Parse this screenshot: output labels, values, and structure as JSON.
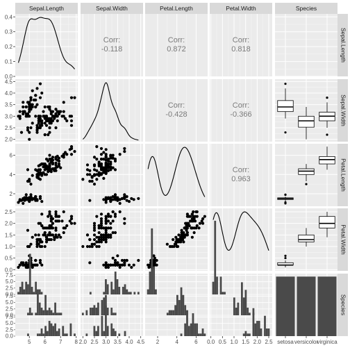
{
  "chart_data": {
    "type": "scatterplot-matrix",
    "columns": [
      "Sepal.Length",
      "Sepal.Width",
      "Petal.Length",
      "Petal.Width",
      "Species"
    ],
    "species_levels": [
      "setosa",
      "versicolor",
      "virginica"
    ],
    "species_tick_labels": [
      "setosa",
      "versicolor",
      "virginica"
    ],
    "correlation_label": "Corr:",
    "correlations": [
      {
        "row": 0,
        "col": 1,
        "value": "-0.118"
      },
      {
        "row": 0,
        "col": 2,
        "value": "0.872"
      },
      {
        "row": 0,
        "col": 3,
        "value": "0.818"
      },
      {
        "row": 1,
        "col": 2,
        "value": "-0.428"
      },
      {
        "row": 1,
        "col": 3,
        "value": "-0.366"
      },
      {
        "row": 2,
        "col": 3,
        "value": "0.963"
      }
    ],
    "x_axes": {
      "Sepal.Length": {
        "range": [
          4.1,
          8.1
        ],
        "ticks": [
          5,
          6,
          7,
          8
        ]
      },
      "Sepal.Width": {
        "range": [
          1.9,
          4.6
        ],
        "ticks": [
          2.0,
          2.5,
          3.0,
          3.5,
          4.0,
          4.5
        ],
        "tick_labels": [
          "2.0",
          "2.5",
          "3.0",
          "3.5",
          "4.0",
          "4.5"
        ]
      },
      "Petal.Length": {
        "range": [
          0.7,
          7.2
        ],
        "ticks": [
          2,
          4,
          6
        ]
      },
      "Petal.Width": {
        "range": [
          -0.05,
          2.65
        ],
        "ticks": [
          0.0,
          0.5,
          1.0,
          1.5,
          2.0,
          2.5
        ],
        "tick_labels": [
          "0.0",
          "0.5",
          "1.0",
          "1.5",
          "2.0",
          "2.5"
        ]
      }
    },
    "y_axes": {
      "Sepal.Length": {
        "range": [
          0,
          0.42
        ],
        "ticks": [
          0.0,
          0.1,
          0.2,
          0.3,
          0.4
        ],
        "tick_labels": [
          "0.0",
          "0.1",
          "0.2",
          "0.3",
          "0.4"
        ]
      },
      "Sepal.Width": {
        "range": [
          1.9,
          4.6
        ],
        "ticks": [
          2.0,
          2.5,
          3.0,
          3.5,
          4.0,
          4.5
        ],
        "tick_labels": [
          "2.0",
          "2.5",
          "3.0",
          "3.5",
          "4.0",
          "4.5"
        ]
      },
      "Petal.Length": {
        "range": [
          0.7,
          7.2
        ],
        "ticks": [
          2,
          4,
          6
        ]
      },
      "Petal.Width": {
        "range": [
          -0.05,
          2.65
        ],
        "ticks": [
          0.0,
          0.5,
          1.0,
          1.5,
          2.0,
          2.5
        ],
        "tick_labels": [
          "0.0",
          "0.5",
          "1.0",
          "1.5",
          "2.0",
          "2.5"
        ]
      },
      "Species": {
        "range": [
          0,
          8.2
        ],
        "ticks": [
          0.0,
          2.5,
          5.0,
          7.5
        ],
        "tick_labels": [
          "0.0",
          "2.5",
          "5.0",
          "7.5"
        ]
      }
    },
    "data": {
      "sepal_length": [
        5.1,
        4.9,
        4.7,
        4.6,
        5.0,
        5.4,
        4.6,
        5.0,
        4.4,
        4.9,
        5.4,
        4.8,
        4.8,
        4.3,
        5.8,
        5.7,
        5.4,
        5.1,
        5.7,
        5.1,
        5.4,
        5.1,
        4.6,
        5.1,
        4.8,
        5.0,
        5.0,
        5.2,
        5.2,
        4.7,
        4.8,
        5.4,
        5.2,
        5.5,
        4.9,
        5.0,
        5.5,
        4.9,
        4.4,
        5.1,
        5.0,
        4.5,
        4.4,
        5.0,
        5.1,
        4.8,
        5.1,
        4.6,
        5.3,
        5.0,
        7.0,
        6.4,
        6.9,
        5.5,
        6.5,
        5.7,
        6.3,
        4.9,
        6.6,
        5.2,
        5.0,
        5.9,
        6.0,
        6.1,
        5.6,
        6.7,
        5.6,
        5.8,
        6.2,
        5.6,
        5.9,
        6.1,
        6.3,
        6.1,
        6.4,
        6.6,
        6.8,
        6.7,
        6.0,
        5.7,
        5.5,
        5.5,
        5.8,
        6.0,
        5.4,
        6.0,
        6.7,
        6.3,
        5.6,
        5.5,
        5.5,
        6.1,
        5.8,
        5.0,
        5.6,
        5.7,
        5.7,
        6.2,
        5.1,
        5.7,
        6.3,
        5.8,
        7.1,
        6.3,
        6.5,
        7.6,
        4.9,
        7.3,
        6.7,
        7.2,
        6.5,
        6.4,
        6.8,
        5.7,
        5.8,
        6.4,
        6.5,
        7.7,
        7.7,
        6.0,
        6.9,
        5.6,
        7.7,
        6.3,
        6.7,
        7.2,
        6.2,
        6.1,
        6.4,
        7.2,
        7.4,
        7.9,
        6.4,
        6.3,
        6.1,
        7.7,
        6.3,
        6.4,
        6.0,
        6.9,
        6.7,
        6.9,
        5.8,
        6.8,
        6.7,
        6.7,
        6.3,
        6.5,
        6.2,
        5.9
      ],
      "sepal_width": [
        3.5,
        3.0,
        3.2,
        3.1,
        3.6,
        3.9,
        3.4,
        3.4,
        2.9,
        3.1,
        3.7,
        3.4,
        3.0,
        3.0,
        4.0,
        4.4,
        3.9,
        3.5,
        3.8,
        3.8,
        3.4,
        3.7,
        3.6,
        3.3,
        3.4,
        3.0,
        3.4,
        3.5,
        3.4,
        3.2,
        3.1,
        3.4,
        4.1,
        4.2,
        3.1,
        3.2,
        3.5,
        3.6,
        3.0,
        3.4,
        3.5,
        2.3,
        3.2,
        3.5,
        3.8,
        3.0,
        3.8,
        3.2,
        3.7,
        3.3,
        3.2,
        3.2,
        3.1,
        2.3,
        2.8,
        2.8,
        3.3,
        2.4,
        2.9,
        2.7,
        2.0,
        3.0,
        2.2,
        2.9,
        2.9,
        3.1,
        3.0,
        2.7,
        2.2,
        2.5,
        3.2,
        2.8,
        2.5,
        2.8,
        2.9,
        3.0,
        2.8,
        3.0,
        2.9,
        2.6,
        2.4,
        2.4,
        2.7,
        2.7,
        3.0,
        3.4,
        3.1,
        2.3,
        3.0,
        2.5,
        2.6,
        3.0,
        2.6,
        2.3,
        2.7,
        3.0,
        2.9,
        2.9,
        2.5,
        2.8,
        3.3,
        2.7,
        3.0,
        2.9,
        3.0,
        3.0,
        2.5,
        2.9,
        2.5,
        3.6,
        3.2,
        2.7,
        3.0,
        2.5,
        2.8,
        3.2,
        3.0,
        3.8,
        2.6,
        2.2,
        3.2,
        2.8,
        2.8,
        2.7,
        3.3,
        3.2,
        2.8,
        3.0,
        2.8,
        3.0,
        2.8,
        3.8,
        2.8,
        2.8,
        2.6,
        3.0,
        3.4,
        3.1,
        3.0,
        3.1,
        3.1,
        3.1,
        2.7,
        3.2,
        3.3,
        3.0,
        2.5,
        3.0,
        3.4,
        3.0
      ],
      "petal_length": [
        1.4,
        1.4,
        1.3,
        1.5,
        1.4,
        1.7,
        1.4,
        1.5,
        1.4,
        1.5,
        1.5,
        1.6,
        1.4,
        1.1,
        1.2,
        1.5,
        1.3,
        1.4,
        1.7,
        1.5,
        1.7,
        1.5,
        1.0,
        1.7,
        1.9,
        1.6,
        1.6,
        1.5,
        1.4,
        1.6,
        1.6,
        1.5,
        1.5,
        1.4,
        1.5,
        1.2,
        1.3,
        1.4,
        1.3,
        1.5,
        1.3,
        1.3,
        1.3,
        1.6,
        1.9,
        1.4,
        1.6,
        1.4,
        1.5,
        1.4,
        4.7,
        4.5,
        4.9,
        4.0,
        4.6,
        4.5,
        4.7,
        3.3,
        4.6,
        3.9,
        3.5,
        4.2,
        4.0,
        4.7,
        3.6,
        4.4,
        4.5,
        4.1,
        4.5,
        3.9,
        4.8,
        4.0,
        4.9,
        4.7,
        4.3,
        4.4,
        4.8,
        5.0,
        4.5,
        3.5,
        3.8,
        3.7,
        3.9,
        5.1,
        4.5,
        4.5,
        4.7,
        4.4,
        4.1,
        4.0,
        4.4,
        4.6,
        4.0,
        3.3,
        4.2,
        4.2,
        4.2,
        4.3,
        3.0,
        4.1,
        6.0,
        5.1,
        5.9,
        5.6,
        5.8,
        6.6,
        4.5,
        6.3,
        5.8,
        6.1,
        5.1,
        5.3,
        5.5,
        5.0,
        5.1,
        5.3,
        5.5,
        6.7,
        6.9,
        5.0,
        5.7,
        4.9,
        6.7,
        4.9,
        5.7,
        6.0,
        4.8,
        4.9,
        5.6,
        5.8,
        6.1,
        6.4,
        5.6,
        5.1,
        5.6,
        6.1,
        5.6,
        5.5,
        4.8,
        5.4,
        5.6,
        5.1,
        5.1,
        5.9,
        5.7,
        5.2,
        5.0,
        5.2,
        5.4,
        5.1
      ],
      "petal_width": [
        0.2,
        0.2,
        0.2,
        0.2,
        0.2,
        0.4,
        0.3,
        0.2,
        0.2,
        0.1,
        0.2,
        0.2,
        0.1,
        0.1,
        0.2,
        0.4,
        0.4,
        0.3,
        0.3,
        0.3,
        0.2,
        0.4,
        0.2,
        0.5,
        0.2,
        0.2,
        0.4,
        0.2,
        0.2,
        0.2,
        0.2,
        0.4,
        0.1,
        0.2,
        0.2,
        0.2,
        0.2,
        0.1,
        0.2,
        0.2,
        0.3,
        0.3,
        0.2,
        0.6,
        0.4,
        0.3,
        0.2,
        0.2,
        0.2,
        0.2,
        1.4,
        1.5,
        1.5,
        1.3,
        1.5,
        1.3,
        1.6,
        1.0,
        1.3,
        1.4,
        1.0,
        1.5,
        1.0,
        1.4,
        1.3,
        1.4,
        1.5,
        1.0,
        1.5,
        1.1,
        1.8,
        1.3,
        1.5,
        1.2,
        1.3,
        1.4,
        1.4,
        1.7,
        1.5,
        1.0,
        1.1,
        1.0,
        1.2,
        1.6,
        1.5,
        1.6,
        1.5,
        1.3,
        1.3,
        1.3,
        1.2,
        1.4,
        1.2,
        1.0,
        1.3,
        1.2,
        1.3,
        1.3,
        1.1,
        1.3,
        2.5,
        1.9,
        2.1,
        1.8,
        2.2,
        2.1,
        1.7,
        1.8,
        1.8,
        2.5,
        2.0,
        1.9,
        2.1,
        2.0,
        2.4,
        2.3,
        1.8,
        2.2,
        2.3,
        1.5,
        2.3,
        2.0,
        2.0,
        1.8,
        2.1,
        1.8,
        1.8,
        1.8,
        2.1,
        1.6,
        1.9,
        2.0,
        2.2,
        1.5,
        1.4,
        2.3,
        2.4,
        1.8,
        1.8,
        2.1,
        2.4,
        2.3,
        1.9,
        2.3,
        2.5,
        2.3,
        1.9,
        2.0,
        2.3,
        1.8
      ]
    }
  }
}
